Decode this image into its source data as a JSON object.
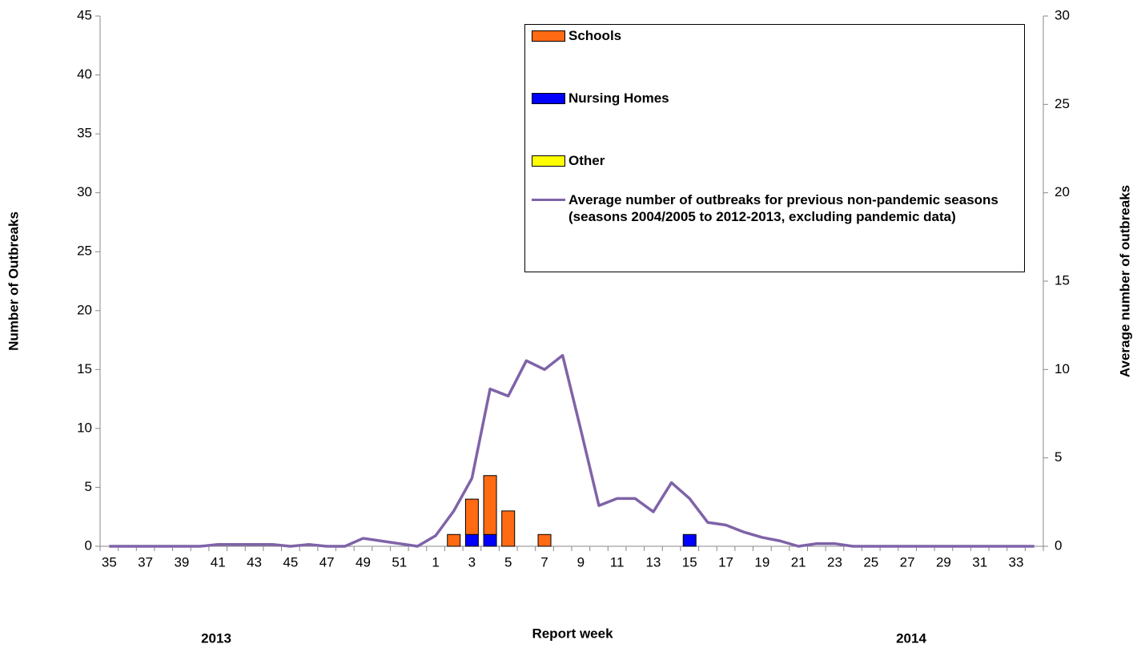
{
  "chart_data": {
    "type": "bar",
    "categories": [
      "35",
      null,
      "37",
      null,
      "39",
      null,
      "41",
      null,
      "43",
      null,
      "45",
      null,
      "47",
      null,
      "49",
      null,
      "51",
      null,
      "1",
      null,
      "3",
      null,
      "5",
      null,
      "7",
      null,
      "9",
      null,
      "11",
      null,
      "13",
      null,
      "15",
      null,
      "17",
      null,
      "19",
      null,
      "21",
      null,
      "23",
      null,
      "25",
      null,
      "27",
      null,
      "29",
      null,
      "31",
      null,
      "33",
      null
    ],
    "series": [
      {
        "name": "Nursing Homes",
        "color": "#0000ff",
        "values": [
          0,
          0,
          0,
          0,
          0,
          0,
          0,
          0,
          0,
          0,
          0,
          0,
          0,
          0,
          0,
          0,
          0,
          0,
          0,
          0,
          1,
          1,
          0,
          0,
          0,
          0,
          0,
          0,
          0,
          0,
          0,
          0,
          1,
          0,
          0,
          0,
          0,
          0,
          0,
          0,
          0,
          0,
          0,
          0,
          0,
          0,
          0,
          0,
          0,
          0,
          0,
          0
        ]
      },
      {
        "name": "Schools",
        "color": "#ff6a13",
        "values": [
          0,
          0,
          0,
          0,
          0,
          0,
          0,
          0,
          0,
          0,
          0,
          0,
          0,
          0,
          0,
          0,
          0,
          0,
          0,
          1,
          3,
          5,
          3,
          0,
          1,
          0,
          0,
          0,
          0,
          0,
          0,
          0,
          0,
          0,
          0,
          0,
          0,
          0,
          0,
          0,
          0,
          0,
          0,
          0,
          0,
          0,
          0,
          0,
          0,
          0,
          0,
          0
        ]
      },
      {
        "name": "Other",
        "color": "#ffff00",
        "values": [
          0,
          0,
          0,
          0,
          0,
          0,
          0,
          0,
          0,
          0,
          0,
          0,
          0,
          0,
          0,
          0,
          0,
          0,
          0,
          0,
          0,
          0,
          0,
          0,
          0,
          0,
          0,
          0,
          0,
          0,
          0,
          0,
          0,
          0,
          0,
          0,
          0,
          0,
          0,
          0,
          0,
          0,
          0,
          0,
          0,
          0,
          0,
          0,
          0,
          0,
          0,
          0
        ]
      },
      {
        "name": "Average number of outbreaks for previous non-pandemic seasons (seasons 2004/2005 to 2012-2013, excluding pandemic data)",
        "type": "line",
        "axis": "y2",
        "color": "#7f63a8",
        "values": [
          0,
          0,
          0,
          0,
          0,
          0,
          0.1,
          0.1,
          0.1,
          0.1,
          0,
          0.1,
          0,
          0,
          0.45,
          0.3,
          0.15,
          0,
          0.6,
          2.0,
          3.85,
          8.9,
          8.5,
          10.5,
          10.0,
          10.8,
          6.6,
          2.3,
          2.7,
          2.7,
          1.95,
          3.6,
          2.7,
          1.35,
          1.2,
          0.8,
          0.5,
          0.3,
          0,
          0.15,
          0.15,
          0,
          0,
          0,
          0,
          0,
          0,
          0,
          0,
          0,
          0,
          0
        ]
      }
    ],
    "ylabel": "Number of Outbreaks",
    "y2label": "Average number of outbreaks",
    "xlabel": "Report week",
    "annotations": [
      "2013",
      "2014"
    ],
    "ylim": [
      0,
      45
    ],
    "yticks": [
      0,
      5,
      10,
      15,
      20,
      25,
      30,
      35,
      40,
      45
    ],
    "y2lim": [
      0,
      30
    ],
    "y2ticks": [
      0,
      5,
      10,
      15,
      20,
      25,
      30
    ],
    "legend": "top-right"
  }
}
